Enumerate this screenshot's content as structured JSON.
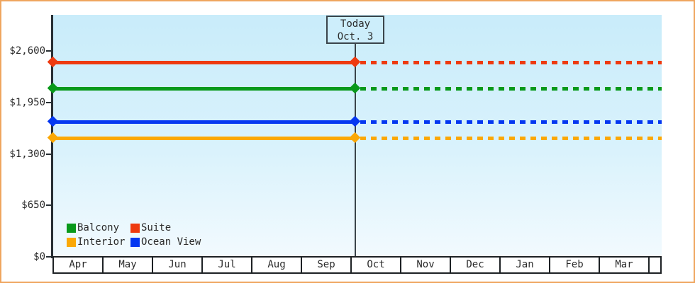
{
  "chart_data": {
    "type": "line",
    "title": "",
    "xlabel": "",
    "ylabel": "",
    "categories": [
      "Apr",
      "May",
      "Jun",
      "Jul",
      "Aug",
      "Sep",
      "Oct",
      "Nov",
      "Dec",
      "Jan",
      "Feb",
      "Mar"
    ],
    "series": [
      {
        "name": "Suite",
        "color": "#ee3a10",
        "value": 2460
      },
      {
        "name": "Balcony",
        "color": "#09991a",
        "value": 2125
      },
      {
        "name": "Ocean View",
        "color": "#0437f1",
        "value": 1705
      },
      {
        "name": "Interior",
        "color": "#fba805",
        "value": 1500
      }
    ],
    "y_ticks": [
      {
        "label": "$0",
        "value": 0
      },
      {
        "label": "$650",
        "value": 650
      },
      {
        "label": "$1,300",
        "value": 1300
      },
      {
        "label": "$1,950",
        "value": 1950
      },
      {
        "label": "$2,600",
        "value": 2600
      }
    ],
    "ylim": [
      0,
      3060
    ],
    "grid": false,
    "legend_position": "inside-bottom-left",
    "legend_order": [
      "Balcony",
      "Suite",
      "Interior",
      "Ocean View"
    ],
    "today": {
      "line1": "Today",
      "line2": "Oct. 3",
      "month": "Oct",
      "day": 3
    },
    "line_style": {
      "solid_before_today": true,
      "dotted_after_today": true,
      "marker": "diamond"
    }
  },
  "colors": {
    "frame_border": "#efa55f",
    "plot_background_top": "#c9ecfa",
    "plot_background_bottom": "#f2fafe",
    "axis": "#282f34",
    "month_box_border": "#1d2124",
    "today_line": "#3a444b",
    "text": "#2b2b2b"
  }
}
